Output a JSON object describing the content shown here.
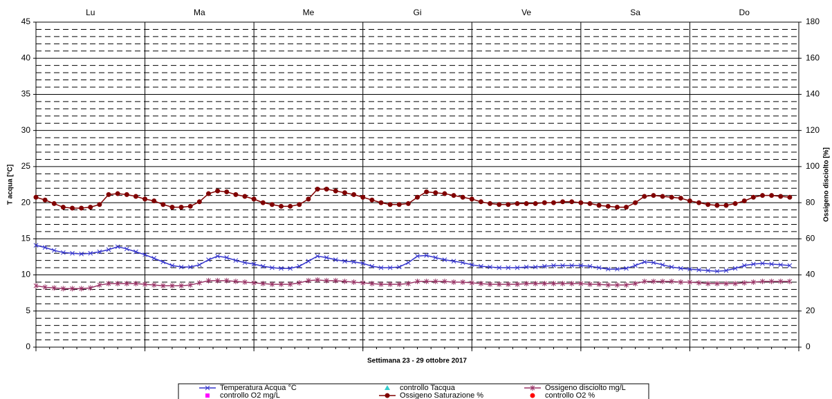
{
  "chart_data": {
    "type": "line",
    "xlabel": "Settimana 23 - 29 ottobre 2017",
    "ylabel": "T acqua [°C]",
    "y2label": "Ossigeno disciolto [%]",
    "days": [
      "Lu",
      "Ma",
      "Me",
      "Gi",
      "Ve",
      "Sa",
      "Do"
    ],
    "x": [
      0,
      2,
      4,
      6,
      8,
      10,
      12,
      14,
      16,
      18,
      20,
      22,
      24,
      26,
      28,
      30,
      32,
      34,
      36,
      38,
      40,
      42,
      44,
      46,
      48,
      50,
      52,
      54,
      56,
      58,
      60,
      62,
      64,
      66,
      68,
      70,
      72,
      74,
      76,
      78,
      80,
      82,
      84,
      86,
      88,
      90,
      92,
      94,
      96,
      98,
      100,
      102,
      104,
      106,
      108,
      110,
      112,
      114,
      116,
      118,
      120,
      122,
      124,
      126,
      128,
      130,
      132,
      134,
      136,
      138,
      140,
      142,
      144,
      146,
      148,
      150,
      152,
      154,
      156,
      158,
      160,
      162,
      164,
      166
    ],
    "xlim": [
      0,
      168
    ],
    "xticks": [
      0,
      24,
      48,
      72,
      96,
      120,
      144,
      168
    ],
    "ylim": [
      0,
      45
    ],
    "yticks": [
      0,
      5,
      10,
      15,
      20,
      25,
      30,
      35,
      40,
      45
    ],
    "y2lim": [
      0,
      180
    ],
    "y2ticks": [
      0,
      20,
      40,
      60,
      80,
      100,
      120,
      140,
      160,
      180
    ],
    "grid": true,
    "minor_grid": true,
    "legend": "bottom",
    "series": [
      {
        "name": "Temperatura Acqua °C",
        "color": "#3333cc",
        "marker": "x",
        "values": [
          14.1,
          13.8,
          13.4,
          13.1,
          13.0,
          12.9,
          13.0,
          13.2,
          13.5,
          13.9,
          13.6,
          13.2,
          12.8,
          12.3,
          11.8,
          11.3,
          11.1,
          11.1,
          11.4,
          12.1,
          12.6,
          12.4,
          12.0,
          11.7,
          11.5,
          11.2,
          11.0,
          10.9,
          10.9,
          11.2,
          11.9,
          12.6,
          12.4,
          12.1,
          11.9,
          11.8,
          11.6,
          11.2,
          11.0,
          11.0,
          11.1,
          11.7,
          12.6,
          12.7,
          12.4,
          12.1,
          11.9,
          11.7,
          11.4,
          11.2,
          11.1,
          11.0,
          11.0,
          11.0,
          11.1,
          11.1,
          11.2,
          11.3,
          11.3,
          11.3,
          11.3,
          11.2,
          11.0,
          10.8,
          10.8,
          10.9,
          11.3,
          11.8,
          11.7,
          11.4,
          11.1,
          10.9,
          10.8,
          10.7,
          10.6,
          10.5,
          10.6,
          10.9,
          11.3,
          11.5,
          11.6,
          11.5,
          11.4,
          11.3
        ]
      },
      {
        "name": "controllo Tacqua",
        "color": "#33cccc",
        "marker": "triangle"
      },
      {
        "name": "Ossigeno disciolto mg/L",
        "color": "#993366",
        "marker": "star",
        "values": [
          8.5,
          8.3,
          8.2,
          8.1,
          8.1,
          8.1,
          8.2,
          8.6,
          8.8,
          8.8,
          8.8,
          8.8,
          8.7,
          8.6,
          8.5,
          8.5,
          8.5,
          8.6,
          8.9,
          9.2,
          9.2,
          9.2,
          9.1,
          9.0,
          8.9,
          8.8,
          8.7,
          8.7,
          8.7,
          8.9,
          9.2,
          9.3,
          9.2,
          9.2,
          9.1,
          9.0,
          8.9,
          8.8,
          8.7,
          8.7,
          8.7,
          8.8,
          9.1,
          9.1,
          9.1,
          9.1,
          9.0,
          9.0,
          8.9,
          8.8,
          8.7,
          8.7,
          8.7,
          8.7,
          8.8,
          8.8,
          8.8,
          8.8,
          8.8,
          8.8,
          8.8,
          8.7,
          8.7,
          8.6,
          8.6,
          8.6,
          8.8,
          9.1,
          9.1,
          9.1,
          9.1,
          9.0,
          9.0,
          8.9,
          8.8,
          8.8,
          8.8,
          8.8,
          8.9,
          9.0,
          9.1,
          9.1,
          9.1,
          9.1
        ]
      },
      {
        "name": "controllo O2 mg/L",
        "color": "#ff00ff",
        "marker": "square"
      },
      {
        "name": "Ossigeno Saturazione %",
        "color": "#800000",
        "marker": "circle",
        "axis": "y2",
        "values": [
          83,
          81.5,
          79.5,
          77.5,
          77,
          77,
          77.5,
          79,
          84.5,
          85,
          84.5,
          83.5,
          82,
          81,
          79,
          77.5,
          77.5,
          78,
          80.5,
          85,
          86.5,
          86,
          84.5,
          83.5,
          82,
          80,
          79,
          78,
          78,
          79,
          82,
          87.5,
          87.5,
          86.5,
          85.5,
          84.5,
          83,
          81.5,
          80,
          79,
          79,
          79.5,
          83,
          86,
          85.5,
          85,
          84,
          83,
          82,
          80.5,
          79.5,
          79,
          79,
          79.5,
          79.5,
          79.5,
          80,
          80,
          80.5,
          80.5,
          80,
          79.5,
          78.5,
          78,
          77.5,
          77.5,
          80,
          83.5,
          84,
          83.5,
          83,
          82.5,
          81,
          80,
          79,
          78.5,
          78.5,
          79.5,
          81,
          83,
          84,
          84,
          83.5,
          83
        ]
      },
      {
        "name": "controllo O2 %",
        "color": "#ff0000",
        "marker": "circle"
      }
    ]
  }
}
